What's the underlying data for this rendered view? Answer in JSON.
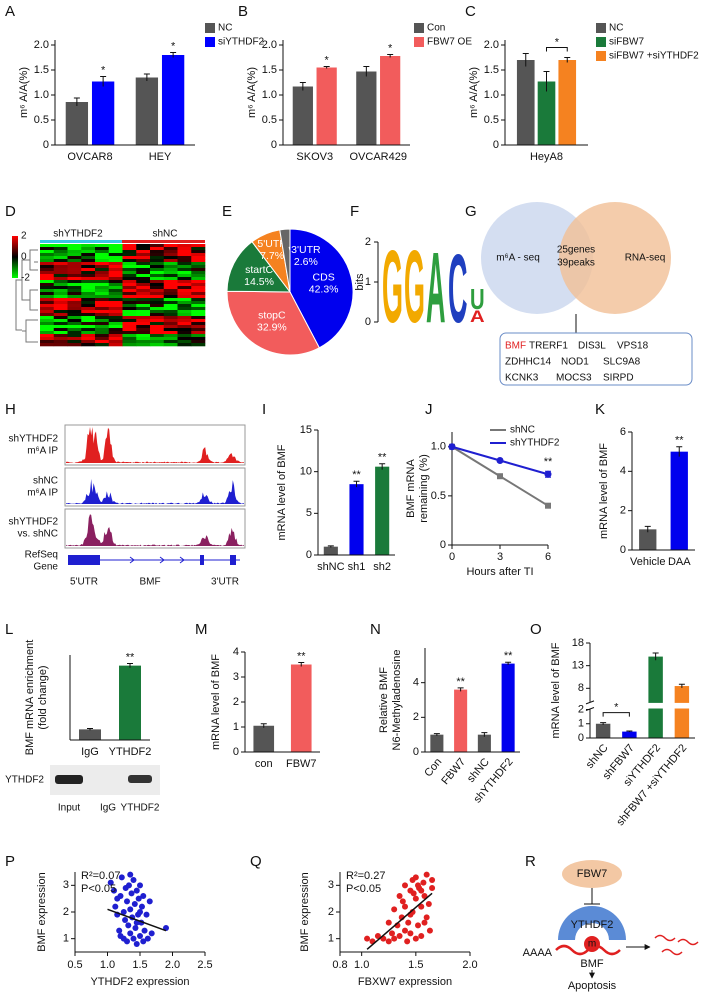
{
  "chart_data": [
    {
      "panel": "A",
      "type": "bar",
      "ylabel": "m⁶ A/A(%)",
      "categories": [
        "OVCAR8",
        "HEY"
      ],
      "series": [
        {
          "name": "NC",
          "color": "#555555",
          "values": [
            0.86,
            1.35
          ],
          "errors": [
            0.08,
            0.07
          ]
        },
        {
          "name": "siYTHDF2",
          "color": "#0000ff",
          "values": [
            1.27,
            1.8
          ],
          "errors": [
            0.1,
            0.05
          ],
          "significance": [
            "*",
            "*"
          ]
        }
      ],
      "ylim": [
        0,
        2.1
      ],
      "yticks": [
        0,
        0.5,
        {
          "value": 1,
          "label": "1.0"
        },
        1.5,
        {
          "value": 2,
          "label": "2.0"
        }
      ],
      "legend": "right"
    },
    {
      "panel": "B",
      "type": "bar",
      "ylabel": "m⁶ A/A(%)",
      "categories": [
        "SKOV3",
        "OVCAR429"
      ],
      "series": [
        {
          "name": "Con",
          "color": "#555555",
          "values": [
            1.17,
            1.47
          ],
          "errors": [
            0.08,
            0.1
          ]
        },
        {
          "name": "FBW7 OE",
          "color": "#f25c5c",
          "values": [
            1.55,
            1.78
          ],
          "errors": [
            0.02,
            0.03
          ],
          "significance": [
            "*",
            "*"
          ]
        }
      ],
      "ylim": [
        0,
        2.1
      ],
      "yticks": [
        0,
        0.5,
        {
          "value": 1,
          "label": "1.0"
        },
        1.5,
        {
          "value": 2,
          "label": "2.0"
        }
      ],
      "legend": "right"
    },
    {
      "panel": "C",
      "type": "bar",
      "ylabel": "m⁶ A/A(%)",
      "categories": [
        "HeyA8"
      ],
      "series": [
        {
          "name": "NC",
          "color": "#555555",
          "values": [
            1.7
          ],
          "errors": [
            0.13
          ]
        },
        {
          "name": "siFBW7",
          "color": "#1a7a3a",
          "values": [
            1.27
          ],
          "errors": [
            0.2
          ]
        },
        {
          "name": "siFBW7 +siYTHDF2",
          "color": "#f58220",
          "values": [
            1.7
          ],
          "errors": [
            0.05
          ]
        }
      ],
      "bracket": "*",
      "ylim": [
        0,
        2.1
      ],
      "yticks": [
        0,
        0.5,
        {
          "value": 1,
          "label": "1.0"
        },
        1.5,
        {
          "value": 2,
          "label": "2.0"
        }
      ],
      "legend": "right"
    },
    {
      "panel": "E",
      "type": "pie",
      "categories": [
        "CDS",
        "stopC",
        "startC",
        "5'UTR",
        "3'UTR"
      ],
      "values": [
        42.3,
        32.9,
        14.5,
        7.7,
        2.6
      ],
      "value_labels": [
        "42.3%",
        "32.9%",
        "14.5%",
        "7.7%",
        "2.6%"
      ],
      "colors": [
        "#0000ee",
        "#f25c5c",
        "#1a7a3a",
        "#f58220",
        "#666666"
      ]
    },
    {
      "panel": "I",
      "type": "bar",
      "ylabel": "mRNA level of BMF",
      "categories": [
        "shNC",
        "sh1",
        "sh2"
      ],
      "values": [
        1,
        8.5,
        10.6
      ],
      "errors": [
        0.1,
        0.35,
        0.35
      ],
      "colors": [
        "#555555",
        "#0000ee",
        "#1a7a3a"
      ],
      "significance": [
        null,
        "**",
        "**"
      ],
      "ylim": [
        0,
        15
      ],
      "yticks": [
        0,
        5,
        10,
        15
      ]
    },
    {
      "panel": "J",
      "type": "line",
      "ylabel": [
        "BMF mRNA",
        "remaining (%)"
      ],
      "xlabel": "Hours after TI",
      "x": [
        0,
        3,
        6
      ],
      "xlim": [
        0,
        6
      ],
      "xticks": [
        0,
        3,
        6
      ],
      "series": [
        {
          "name": "shNC",
          "color": "#777777",
          "values": [
            1,
            0.7,
            0.4
          ],
          "errors": [
            0,
            0.02,
            0.02
          ]
        },
        {
          "name": "shYTHDF2",
          "color": "#1f1fd0",
          "values": [
            1,
            0.86,
            0.72
          ],
          "errors": [
            0,
            0.015,
            0.03
          ],
          "significance": [
            null,
            null,
            "**"
          ]
        }
      ],
      "ylim": [
        0,
        1.15
      ],
      "yticks": [
        0,
        0.5,
        {
          "value": 1,
          "label": "1.0"
        }
      ],
      "legend": "top-right"
    },
    {
      "panel": "K",
      "type": "bar",
      "ylabel": "mRNA  level of BMF",
      "categories": [
        "Vehicle",
        "DAA"
      ],
      "values": [
        1.05,
        5.0
      ],
      "errors": [
        0.15,
        0.25
      ],
      "colors": [
        "#555555",
        "#0000ee"
      ],
      "significance": [
        null,
        "**"
      ],
      "ylim": [
        0,
        6
      ],
      "yticks": [
        0,
        2,
        4,
        6
      ]
    },
    {
      "panel": "L",
      "type": "bar",
      "ylabel": [
        "BMF mRNA enrichment",
        "(fold change)"
      ],
      "categories": [
        "IgG",
        "YTHDF2"
      ],
      "values": [
        1,
        7
      ],
      "errors": [
        0.08,
        0.2
      ],
      "colors": [
        "#555555",
        "#1a7a3a"
      ],
      "significance": [
        null,
        "**"
      ],
      "ylim": [
        0,
        8
      ],
      "yticks": []
    },
    {
      "panel": "M",
      "type": "bar",
      "ylabel": "mRNA  level of BMF",
      "categories": [
        "con",
        "FBW7"
      ],
      "values": [
        1.05,
        3.5
      ],
      "errors": [
        0.08,
        0.08
      ],
      "colors": [
        "#555555",
        "#f25c5c"
      ],
      "significance": [
        null,
        "**"
      ],
      "ylim": [
        0,
        4
      ],
      "yticks": [
        0,
        1,
        2,
        3,
        4
      ]
    },
    {
      "panel": "N",
      "type": "bar",
      "ylabel": [
        "Relative BMF",
        "N6-Methyladenosine"
      ],
      "categories": [
        "Con",
        "FBW7",
        "shNC",
        "shYTHDF2"
      ],
      "values": [
        1,
        3.6,
        1,
        5.1
      ],
      "errors": [
        0.06,
        0.1,
        0.12,
        0.08
      ],
      "colors": [
        "#555555",
        "#f25c5c",
        "#555555",
        "#0000ee"
      ],
      "significance": [
        null,
        "**",
        null,
        "**"
      ],
      "ylim": [
        0,
        6
      ],
      "yticks": [
        0,
        2,
        4
      ]
    },
    {
      "panel": "O",
      "type": "bar",
      "ylabel": "mRNA level of BMF",
      "categories": [
        "shNC",
        "shFBW7",
        "siYTHDF2",
        "shFBW7 +siYTHDF2"
      ],
      "values": [
        1,
        0.45,
        15,
        8.5
      ],
      "errors": [
        0.08,
        0.04,
        0.8,
        0.4
      ],
      "colors": [
        "#555555",
        "#0000ee",
        "#1a7a3a",
        "#f58220"
      ],
      "bracket": "*",
      "ylim": [
        0,
        18
      ],
      "ybreak": [
        2,
        5
      ],
      "yticks": [
        0,
        1,
        2,
        8,
        13,
        18
      ]
    },
    {
      "panel": "P",
      "type": "scatter",
      "xlabel": "YTHDF2 expression",
      "ylabel": "BMF expression",
      "color": "#1f1fd0",
      "x": [
        1.05,
        1.1,
        1.12,
        1.15,
        1.18,
        1.2,
        1.22,
        1.25,
        1.25,
        1.27,
        1.28,
        1.3,
        1.3,
        1.32,
        1.33,
        1.35,
        1.35,
        1.37,
        1.38,
        1.4,
        1.4,
        1.42,
        1.43,
        1.45,
        1.45,
        1.47,
        1.48,
        1.5,
        1.5,
        1.52,
        1.53,
        1.55,
        1.55,
        1.57,
        1.6,
        1.62,
        1.65,
        1.68,
        1.9,
        1.15,
        1.2,
        1.35,
        1.45,
        1.5
      ],
      "values": [
        3.1,
        2.8,
        2.2,
        1.9,
        1.3,
        2.6,
        3.3,
        1.0,
        2.0,
        1.7,
        2.9,
        2.4,
        0.9,
        1.5,
        3.0,
        2.1,
        1.2,
        2.7,
        1.8,
        3.2,
        1.0,
        2.3,
        1.4,
        2.8,
        0.8,
        1.9,
        2.5,
        1.1,
        3.0,
        1.6,
        2.2,
        0.9,
        2.6,
        1.3,
        1.9,
        1.0,
        2.4,
        1.2,
        1.4,
        2.5,
        1.1,
        3.4,
        1.6,
        2.0
      ],
      "fit": {
        "x": [
          1,
          1.9
        ],
        "y": [
          2.1,
          1.3
        ]
      },
      "annotations": [
        "R²=0.07",
        "P<0.05"
      ],
      "xlim": [
        0.5,
        2.5
      ],
      "xticks": [
        0.5,
        {
          "value": 1,
          "label": "1.0"
        },
        1.5,
        {
          "value": 2,
          "label": "2.0"
        },
        2.5
      ],
      "ylim": [
        0.5,
        3.5
      ],
      "yticks": [
        1,
        2,
        3
      ]
    },
    {
      "panel": "Q",
      "type": "scatter",
      "xlabel": "FBXW7 expression",
      "ylabel": "BMF expression",
      "color": "#e02020",
      "x": [
        1.05,
        1.1,
        1.15,
        1.2,
        1.25,
        1.25,
        1.28,
        1.3,
        1.3,
        1.33,
        1.35,
        1.35,
        1.37,
        1.4,
        1.4,
        1.4,
        1.42,
        1.43,
        1.45,
        1.45,
        1.47,
        1.47,
        1.5,
        1.5,
        1.5,
        1.52,
        1.53,
        1.55,
        1.55,
        1.57,
        1.58,
        1.6,
        1.6,
        1.62,
        1.63,
        1.65,
        1.65,
        1.38,
        1.48,
        1.52,
        1.58,
        1.45,
        1.55
      ],
      "values": [
        1.0,
        0.9,
        1.1,
        1.0,
        1.6,
        0.9,
        1.2,
        2.1,
        1.0,
        1.5,
        2.6,
        1.1,
        1.8,
        3.0,
        1.3,
        2.2,
        0.9,
        1.6,
        2.8,
        1.2,
        3.2,
        2.0,
        1.0,
        2.5,
        3.3,
        1.5,
        2.9,
        2.2,
        1.1,
        3.1,
        2.6,
        1.8,
        3.4,
        2.3,
        1.3,
        2.9,
        3.2,
        2.4,
        2.7,
        3.0,
        1.6,
        1.9,
        2.8
      ],
      "fit": {
        "x": [
          1.05,
          1.65
        ],
        "y": [
          0.6,
          2.7
        ]
      },
      "annotations": [
        "R²=0.27",
        "P<0.05"
      ],
      "xlim": [
        0.8,
        2.0
      ],
      "xticks": [
        0.8,
        {
          "value": 1,
          "label": "1.0"
        },
        1.5,
        {
          "value": 2,
          "label": "2.0"
        }
      ],
      "ylim": [
        0.5,
        3.5
      ],
      "yticks": [
        1,
        2,
        3
      ]
    }
  ],
  "heatmap": {
    "panel": "D",
    "groups": [
      "shYTHDF2",
      "shNC"
    ],
    "scale": [
      2,
      0,
      -2
    ]
  },
  "motif": {
    "panel": "F",
    "ylabel": "bits",
    "yticks": [
      2,
      1,
      0
    ],
    "letters": [
      "G",
      "G",
      "A",
      "C",
      "U",
      "A"
    ]
  },
  "venn": {
    "panel": "G",
    "sets": [
      "m⁶A - seq",
      "RNA-seq"
    ],
    "overlap": [
      "25genes",
      "39peaks"
    ],
    "genes": [
      "BMF",
      "TRERF1",
      "DIS3L",
      "VPS18",
      "ZDHHC14",
      "NOD1",
      "SLC9A8",
      "KCNK3",
      "MOCS3",
      "SIRPD"
    ]
  },
  "tracks": {
    "panel": "H",
    "rows": [
      [
        "shYTHDF2",
        "m⁶A IP"
      ],
      [
        "shNC",
        "m⁶A IP"
      ],
      [
        "shYTHDF2",
        "vs. shNC"
      ],
      [
        "RefSeq",
        "Gene"
      ]
    ],
    "gene": [
      "5'UTR",
      "BMF",
      "3'UTR"
    ]
  },
  "blot": {
    "protein": "YTHDF2",
    "lanes": [
      "Input",
      "IgG",
      "YTHDF2"
    ]
  },
  "model": {
    "panel": "R",
    "nodes": [
      "FBW7",
      "YTHDF2",
      "m",
      "AAAA",
      "BMF",
      "Apoptosis"
    ]
  }
}
